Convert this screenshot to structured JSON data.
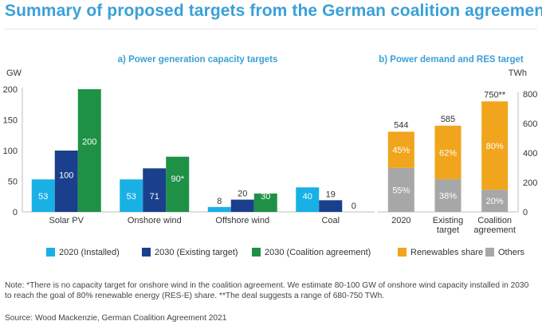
{
  "title": "Summary of proposed targets from the German coalition agreement",
  "note": "Note: *There is no capacity target for onshore wind in the coalition agreement. We estimate 80-100 GW of onshore wind capacity installed in 2030 to reach the goal of 80% renewable energy (RES-E) share. **The deal suggests a range of 680-750 TWh.",
  "source": "Source: Wood Mackenzie, German Coalition Agreement 2021",
  "colors": {
    "installed_2020": "#19b0e6",
    "existing_2030": "#1a3f8c",
    "coalition_2030": "#1e9146",
    "renewables": "#f0a51c",
    "others": "#a7a7a7",
    "axis": "#bcbcbc",
    "heading": "#3aa0d8"
  },
  "chart_data": [
    {
      "type": "bar",
      "title": "a) Power generation capacity targets",
      "ylabel": "GW",
      "ylim": [
        0,
        200
      ],
      "yticks": [
        "0",
        "50",
        "100",
        "150",
        "200"
      ],
      "categories": [
        "Solar PV",
        "Onshore wind",
        "Offshore wind",
        "Coal"
      ],
      "series": [
        {
          "name": "2020 (Installed)",
          "values": [
            53,
            53,
            8,
            40
          ],
          "labels": [
            "53",
            "53",
            "8",
            "40"
          ]
        },
        {
          "name": "2030 (Existing target)",
          "values": [
            100,
            71,
            20,
            19
          ],
          "labels": [
            "100",
            "71",
            "20",
            "19"
          ]
        },
        {
          "name": "2030 (Coalition agreement)",
          "values": [
            200,
            90,
            30,
            0
          ],
          "labels": [
            "200",
            "90*",
            "30",
            "0"
          ]
        }
      ]
    },
    {
      "type": "bar",
      "stacked": true,
      "title": "b) Power demand and RES target",
      "ylabel": "TWh",
      "ylim": [
        0,
        800
      ],
      "yticks": [
        "0",
        "200",
        "400",
        "600",
        "800"
      ],
      "categories": [
        "2020",
        "Existing target",
        "Coalition agreement"
      ],
      "totals": [
        544,
        585,
        750
      ],
      "total_labels": [
        "544",
        "585",
        "750**"
      ],
      "series": [
        {
          "name": "Others",
          "values": [
            299,
            222,
            150
          ],
          "labels": [
            "55%",
            "38%",
            "20%"
          ]
        },
        {
          "name": "Renewables share",
          "values": [
            245,
            363,
            600
          ],
          "labels": [
            "45%",
            "62%",
            "80%"
          ]
        }
      ]
    }
  ],
  "legend_left": [
    "2020 (Installed)",
    "2030 (Existing target)",
    "2030 (Coalition agreement)"
  ],
  "legend_right": [
    "Renewables share",
    "Others"
  ]
}
